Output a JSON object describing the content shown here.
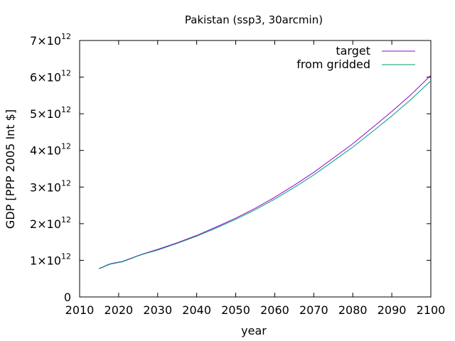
{
  "chart_data": {
    "type": "line",
    "title": "Pakistan (ssp3, 30arcmin)",
    "xlabel": "year",
    "ylabel": "GDP [PPP 2005 Int $]",
    "xlim": [
      2010,
      2100
    ],
    "ylim": [
      0,
      7000000000000
    ],
    "x_ticks": [
      "2010",
      "2020",
      "2030",
      "2040",
      "2050",
      "2060",
      "2070",
      "2080",
      "2090",
      "2100"
    ],
    "y_ticks": [
      {
        "value": 0,
        "mantissa": "0",
        "exp": ""
      },
      {
        "value": 1000000000000,
        "mantissa": "1×10",
        "exp": "12"
      },
      {
        "value": 2000000000000,
        "mantissa": "2×10",
        "exp": "12"
      },
      {
        "value": 3000000000000,
        "mantissa": "3×10",
        "exp": "12"
      },
      {
        "value": 4000000000000,
        "mantissa": "4×10",
        "exp": "12"
      },
      {
        "value": 5000000000000,
        "mantissa": "5×10",
        "exp": "12"
      },
      {
        "value": 6000000000000,
        "mantissa": "6×10",
        "exp": "12"
      },
      {
        "value": 7000000000000,
        "mantissa": "7×10",
        "exp": "12"
      }
    ],
    "grid": false,
    "legend_position": "top-right",
    "series": [
      {
        "name": "target",
        "color": "#9400d3",
        "x": [
          2015,
          2016,
          2017,
          2018,
          2019,
          2020,
          2021,
          2022,
          2023,
          2025,
          2027,
          2030,
          2035,
          2040,
          2045,
          2050,
          2055,
          2060,
          2065,
          2070,
          2075,
          2080,
          2085,
          2090,
          2095,
          2100
        ],
        "y": [
          780000000000,
          820000000000,
          870000000000,
          910000000000,
          930000000000,
          950000000000,
          970000000000,
          1010000000000,
          1050000000000,
          1130000000000,
          1200000000000,
          1300000000000,
          1480000000000,
          1680000000000,
          1910000000000,
          2150000000000,
          2420000000000,
          2720000000000,
          3050000000000,
          3400000000000,
          3790000000000,
          4180000000000,
          4620000000000,
          5060000000000,
          5530000000000,
          6050000000000
        ]
      },
      {
        "name": "from gridded",
        "color": "#009e73",
        "x": [
          2015,
          2016,
          2017,
          2018,
          2019,
          2020,
          2021,
          2022,
          2023,
          2025,
          2027,
          2030,
          2035,
          2040,
          2045,
          2050,
          2055,
          2060,
          2065,
          2070,
          2075,
          2080,
          2085,
          2090,
          2095,
          2100
        ],
        "y": [
          770000000000,
          810000000000,
          860000000000,
          900000000000,
          920000000000,
          940000000000,
          960000000000,
          1000000000000,
          1040000000000,
          1120000000000,
          1190000000000,
          1280000000000,
          1460000000000,
          1660000000000,
          1880000000000,
          2120000000000,
          2380000000000,
          2670000000000,
          2990000000000,
          3330000000000,
          3710000000000,
          4090000000000,
          4510000000000,
          4940000000000,
          5400000000000,
          5900000000000
        ]
      }
    ]
  }
}
